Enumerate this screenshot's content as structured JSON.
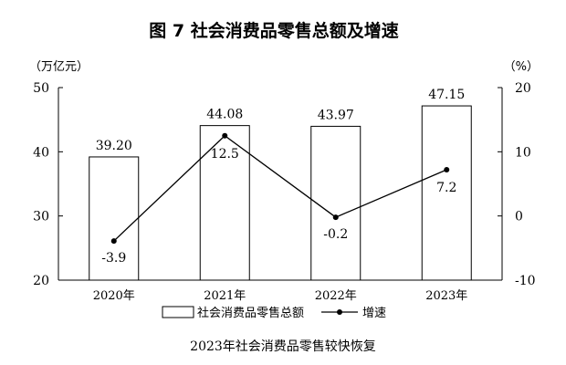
{
  "title": "图 7  社会消费品零售总额及增速",
  "caption": "2023年社会消费品零售较快恢复",
  "chart_data": {
    "type": "bar",
    "categories": [
      "2020年",
      "2021年",
      "2022年",
      "2023年"
    ],
    "series": [
      {
        "name": "社会消费品零售总额",
        "type": "bar",
        "axis": "left",
        "values": [
          39.2,
          44.08,
          43.97,
          47.15
        ],
        "labels": [
          "39.20",
          "44.08",
          "43.97",
          "47.15"
        ]
      },
      {
        "name": "增速",
        "type": "line",
        "axis": "right",
        "values": [
          -3.9,
          12.5,
          -0.2,
          7.2
        ],
        "labels": [
          "-3.9",
          "12.5",
          "-0.2",
          "7.2"
        ]
      }
    ],
    "left_axis": {
      "unit": "（万亿元）",
      "ylim": [
        20,
        50
      ],
      "ticks": [
        "20",
        "30",
        "40",
        "50"
      ]
    },
    "right_axis": {
      "unit": "（%）",
      "ylim": [
        -10,
        20
      ],
      "ticks": [
        "-10",
        "0",
        "10",
        "20"
      ]
    },
    "grid": false,
    "legend_position": "bottom-center"
  }
}
